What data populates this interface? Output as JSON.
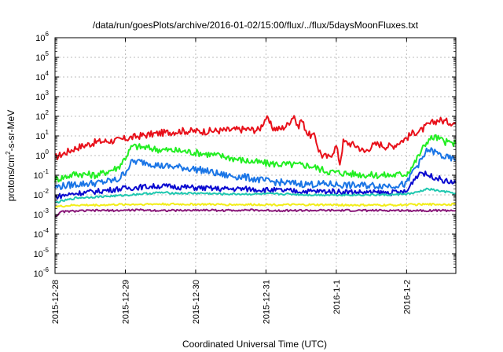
{
  "chart_data": {
    "type": "line",
    "title": "/data/run/goesPlots/archive/2016-01-02/15:00/flux/../flux/5daysMoonFluxes.txt",
    "xlabel": "Coordinated Universal Time (UTC)",
    "ylabel": "protons/cm²-s-sr-MeV",
    "yscale": "log",
    "ylim": [
      1e-06,
      1000000.0
    ],
    "xlim": [
      0,
      5.7
    ],
    "grid": true,
    "legend": "none",
    "y_tick_labels": [
      {
        "base": "10",
        "exp": "-6"
      },
      {
        "base": "10",
        "exp": "-5"
      },
      {
        "base": "10",
        "exp": "-4"
      },
      {
        "base": "10",
        "exp": "-3"
      },
      {
        "base": "10",
        "exp": "-2"
      },
      {
        "base": "10",
        "exp": "-1"
      },
      {
        "base": "10",
        "exp": "0"
      },
      {
        "base": "10",
        "exp": "1"
      },
      {
        "base": "10",
        "exp": "2"
      },
      {
        "base": "10",
        "exp": "3"
      },
      {
        "base": "10",
        "exp": "4"
      },
      {
        "base": "10",
        "exp": "5"
      },
      {
        "base": "10",
        "exp": "6"
      }
    ],
    "x_tick_labels": [
      "2015-12-28",
      "2015-12-29",
      "2015-12-30",
      "2015-12-31",
      "2016-1-1",
      "2016-1-2"
    ],
    "series": [
      {
        "color": "#e8101a",
        "x": [
          0.0,
          0.3,
          0.6,
          0.9,
          1.2,
          1.5,
          1.8,
          2.1,
          2.4,
          2.7,
          2.9,
          3.0,
          3.1,
          3.2,
          3.3,
          3.4,
          3.45,
          3.5,
          3.6,
          3.7,
          3.75,
          3.8,
          3.9,
          4.0,
          4.05,
          4.1,
          4.2,
          4.3,
          4.4,
          4.5,
          4.6,
          4.7,
          4.8,
          5.0,
          5.1,
          5.2,
          5.3,
          5.45,
          5.55,
          5.7
        ],
        "y": [
          0.8,
          2.5,
          5,
          6,
          10,
          14,
          18,
          17,
          19,
          22,
          20,
          85,
          25,
          22,
          35,
          120,
          25,
          70,
          12,
          9,
          2,
          1,
          0.8,
          3,
          0.4,
          5,
          4,
          3,
          1.5,
          3,
          4,
          3,
          3,
          8,
          15,
          18,
          35,
          65,
          55,
          45
        ]
      },
      {
        "color": "#22ee22",
        "x": [
          0.0,
          0.3,
          0.6,
          0.9,
          1.0,
          1.1,
          1.3,
          1.5,
          1.8,
          2.1,
          2.4,
          2.7,
          3.0,
          3.3,
          3.6,
          3.9,
          4.2,
          4.5,
          4.8,
          5.0,
          5.1,
          5.2,
          5.3,
          5.4,
          5.55,
          5.7
        ],
        "y": [
          0.06,
          0.12,
          0.1,
          0.25,
          0.8,
          3,
          2.5,
          2,
          1.7,
          1.3,
          0.9,
          0.55,
          0.4,
          0.35,
          0.32,
          0.15,
          0.12,
          0.1,
          0.1,
          0.12,
          0.35,
          1.5,
          6,
          9,
          5,
          4
        ]
      },
      {
        "color": "#1a75e6",
        "x": [
          0.0,
          0.3,
          0.6,
          0.9,
          1.0,
          1.1,
          1.3,
          1.5,
          1.8,
          2.1,
          2.4,
          2.7,
          3.0,
          3.3,
          3.6,
          3.9,
          4.2,
          4.5,
          4.8,
          5.0,
          5.1,
          5.2,
          5.3,
          5.4,
          5.55,
          5.7
        ],
        "y": [
          0.025,
          0.035,
          0.04,
          0.06,
          0.15,
          0.5,
          0.45,
          0.3,
          0.25,
          0.18,
          0.1,
          0.08,
          0.05,
          0.04,
          0.035,
          0.035,
          0.03,
          0.03,
          0.03,
          0.035,
          0.2,
          0.5,
          2,
          1.5,
          0.8,
          0.6
        ]
      },
      {
        "color": "#0a0ad0",
        "x": [
          0.0,
          0.3,
          0.6,
          0.9,
          1.2,
          1.5,
          1.8,
          2.1,
          2.4,
          2.7,
          3.0,
          3.3,
          3.6,
          3.9,
          4.2,
          4.5,
          4.8,
          5.0,
          5.1,
          5.2,
          5.3,
          5.45,
          5.55,
          5.7
        ],
        "y": [
          0.008,
          0.012,
          0.015,
          0.02,
          0.025,
          0.028,
          0.025,
          0.022,
          0.02,
          0.02,
          0.018,
          0.016,
          0.015,
          0.015,
          0.014,
          0.013,
          0.013,
          0.014,
          0.06,
          0.15,
          0.1,
          0.07,
          0.05,
          0.04
        ]
      },
      {
        "color": "#20c8b0",
        "x": [
          0.0,
          0.3,
          0.6,
          0.9,
          1.2,
          1.5,
          1.8,
          2.1,
          2.4,
          2.7,
          3.0,
          3.3,
          3.6,
          3.9,
          4.2,
          4.5,
          4.8,
          5.1,
          5.3,
          5.5,
          5.7
        ],
        "y": [
          0.004,
          0.007,
          0.008,
          0.009,
          0.011,
          0.013,
          0.012,
          0.012,
          0.011,
          0.011,
          0.011,
          0.011,
          0.01,
          0.01,
          0.01,
          0.01,
          0.01,
          0.012,
          0.02,
          0.015,
          0.012
        ]
      },
      {
        "color": "#f2ee1a",
        "x": [
          0.0,
          0.3,
          0.6,
          0.9,
          1.2,
          1.5,
          1.8,
          2.1,
          2.4,
          2.7,
          3.0,
          3.3,
          3.6,
          3.9,
          4.2,
          4.5,
          4.8,
          5.1,
          5.4,
          5.7
        ],
        "y": [
          0.0025,
          0.003,
          0.003,
          0.0032,
          0.0033,
          0.0034,
          0.0033,
          0.0033,
          0.0032,
          0.0032,
          0.0032,
          0.0031,
          0.0031,
          0.0031,
          0.003,
          0.003,
          0.003,
          0.0032,
          0.0033,
          0.0033
        ]
      },
      {
        "color": "#8a1a7a",
        "x": [
          0.0,
          0.1,
          0.3,
          0.6,
          0.9,
          1.2,
          1.5,
          1.8,
          2.1,
          2.4,
          2.7,
          3.0,
          3.3,
          3.6,
          3.9,
          4.2,
          4.5,
          4.8,
          5.1,
          5.4,
          5.7
        ],
        "y": [
          0.0008,
          0.0014,
          0.0015,
          0.0016,
          0.0016,
          0.0017,
          0.0016,
          0.0016,
          0.0017,
          0.0016,
          0.0017,
          0.0016,
          0.0016,
          0.0016,
          0.0016,
          0.0016,
          0.0016,
          0.0016,
          0.0016,
          0.0016,
          0.0016
        ]
      }
    ]
  }
}
